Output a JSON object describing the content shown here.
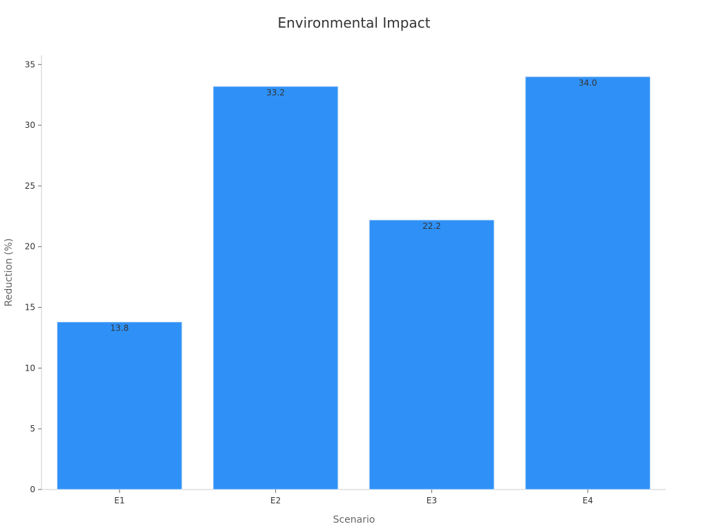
{
  "chart_data": {
    "type": "bar",
    "title": "Environmental Impact",
    "xlabel": "Scenario",
    "ylabel": "Reduction (%)",
    "categories": [
      "E1",
      "E2",
      "E3",
      "E4"
    ],
    "values": [
      13.8,
      33.2,
      22.2,
      34.0
    ],
    "value_labels": [
      "13.8",
      "33.2",
      "22.2",
      "34.0"
    ],
    "ylim": [
      0,
      35
    ],
    "yticks": [
      0,
      5,
      10,
      15,
      20,
      25,
      30,
      35
    ],
    "grid": false,
    "legend": "none",
    "colors": {
      "bar": "#2f91f7",
      "bar_edge": "#d8e6f5",
      "axis": "#cccccc"
    }
  }
}
